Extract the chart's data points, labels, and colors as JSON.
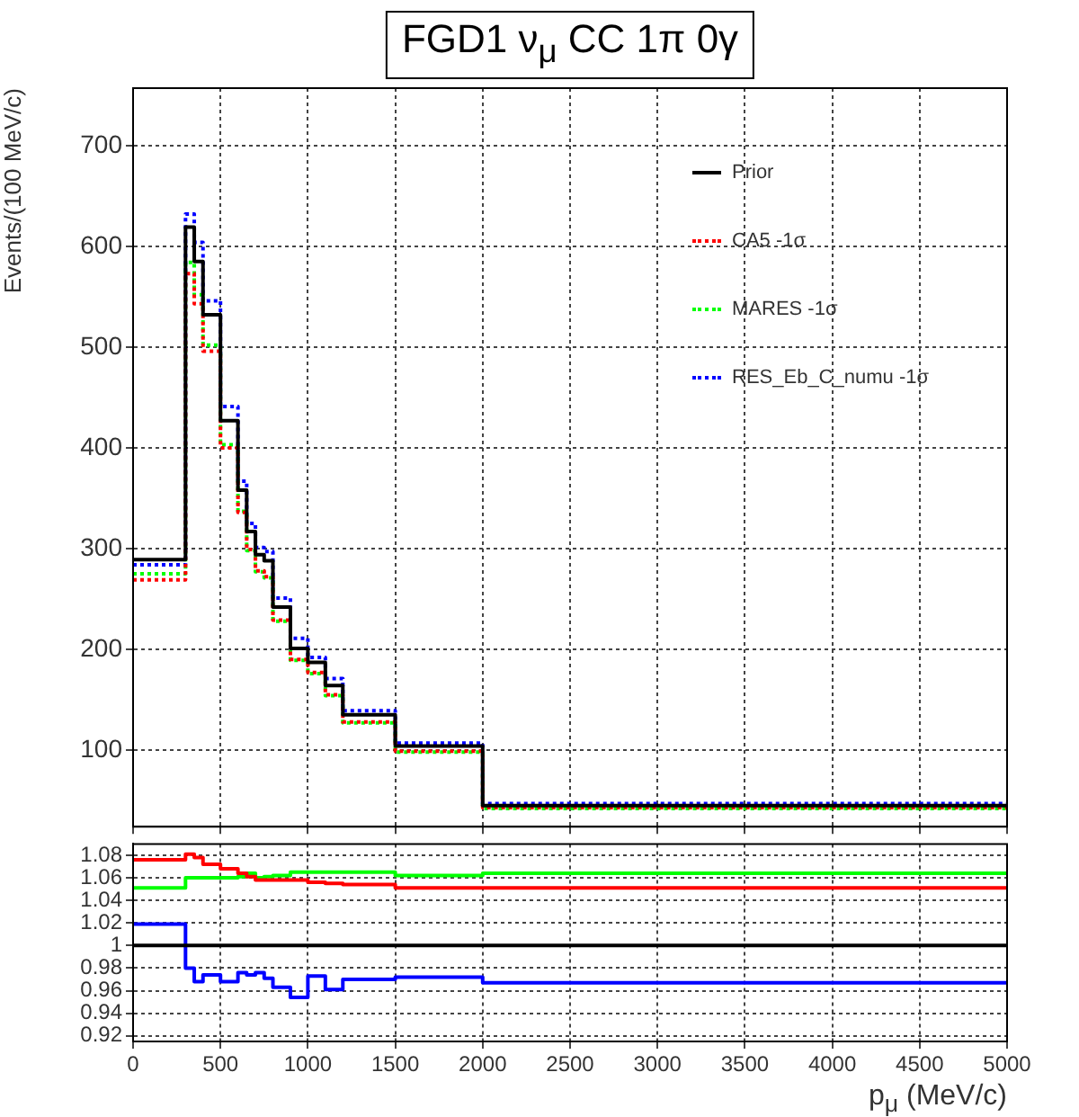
{
  "chart_data": [
    {
      "type": "histogram",
      "title": "FGD1 ν$_{μ}$ CC 1π 0γ",
      "ylabel": "Events/(100 MeV/c)",
      "bins": [
        0,
        300,
        350,
        400,
        500,
        600,
        650,
        700,
        750,
        800,
        900,
        1000,
        1100,
        1200,
        1500,
        2000,
        5000
      ],
      "series": [
        {
          "name": "Prior",
          "color": "#000000",
          "line_style": "solid",
          "values": [
            289,
            619,
            585,
            532,
            427,
            358,
            317,
            294,
            288,
            242,
            201,
            187,
            164,
            135,
            104,
            45
          ]
        },
        {
          "name": "CA5 -1σ",
          "color": "#ff0000",
          "line_style": "dotted",
          "values": [
            269,
            573,
            543,
            496,
            400,
            336,
            299,
            278,
            272,
            229,
            190,
            177,
            155,
            128,
            99,
            43
          ]
        },
        {
          "name": "MARES -1σ",
          "color": "#00ff00",
          "line_style": "dotted",
          "values": [
            275,
            584,
            552,
            502,
            403,
            337,
            298,
            277,
            271,
            228,
            189,
            176,
            154,
            127,
            98,
            42
          ]
        },
        {
          "name": "RES_Eb_C_numu -1σ",
          "color": "#0000ff",
          "line_style": "dotted",
          "values": [
            284,
            632,
            604,
            546,
            441,
            367,
            325,
            301,
            297,
            251,
            211,
            192,
            171,
            139,
            107,
            47
          ]
        }
      ],
      "xlim": [
        0,
        5000
      ],
      "xticks": [
        0,
        500,
        1000,
        1500,
        2000,
        2500,
        3000,
        3500,
        4000,
        4500,
        5000
      ],
      "ylim": [
        24,
        757
      ],
      "yticks": [
        100,
        200,
        300,
        400,
        500,
        600,
        700
      ],
      "tick_labels": "y",
      "grid": true,
      "legend": "top right"
    },
    {
      "type": "histogram",
      "xlabel": "p$_{μ}$ (MeV/c)",
      "bins": [
        0,
        300,
        350,
        400,
        500,
        600,
        650,
        700,
        750,
        800,
        900,
        1000,
        1100,
        1200,
        1500,
        2000,
        5000
      ],
      "series": [
        {
          "color": "#000000",
          "values": [
            1,
            1,
            1,
            1,
            1,
            1,
            1,
            1,
            1,
            1,
            1,
            1,
            1,
            1,
            1,
            1
          ]
        },
        {
          "color": "#ff0000",
          "values": [
            1.076,
            1.081,
            1.078,
            1.072,
            1.068,
            1.064,
            1.061,
            1.058,
            1.058,
            1.058,
            1.058,
            1.056,
            1.055,
            1.054,
            1.051,
            1.051
          ]
        },
        {
          "color": "#00ff00",
          "values": [
            1.051,
            1.06,
            1.06,
            1.06,
            1.06,
            1.061,
            1.064,
            1.06,
            1.061,
            1.062,
            1.065,
            1.065,
            1.065,
            1.065,
            1.062,
            1.064
          ]
        },
        {
          "color": "#0000ff",
          "values": [
            1.019,
            0.98,
            0.968,
            0.974,
            0.968,
            0.976,
            0.974,
            0.976,
            0.971,
            0.963,
            0.954,
            0.973,
            0.961,
            0.97,
            0.972,
            0.967
          ]
        }
      ],
      "xlim": [
        0,
        5000
      ],
      "xticks": [
        0,
        500,
        1000,
        1500,
        2000,
        2500,
        3000,
        3500,
        4000,
        4500,
        5000
      ],
      "ylim": [
        0.915,
        1.09
      ],
      "yticks": [
        0.92,
        0.94,
        0.96,
        0.98,
        1,
        1.02,
        1.04,
        1.06,
        1.08
      ],
      "grid": true
    }
  ]
}
